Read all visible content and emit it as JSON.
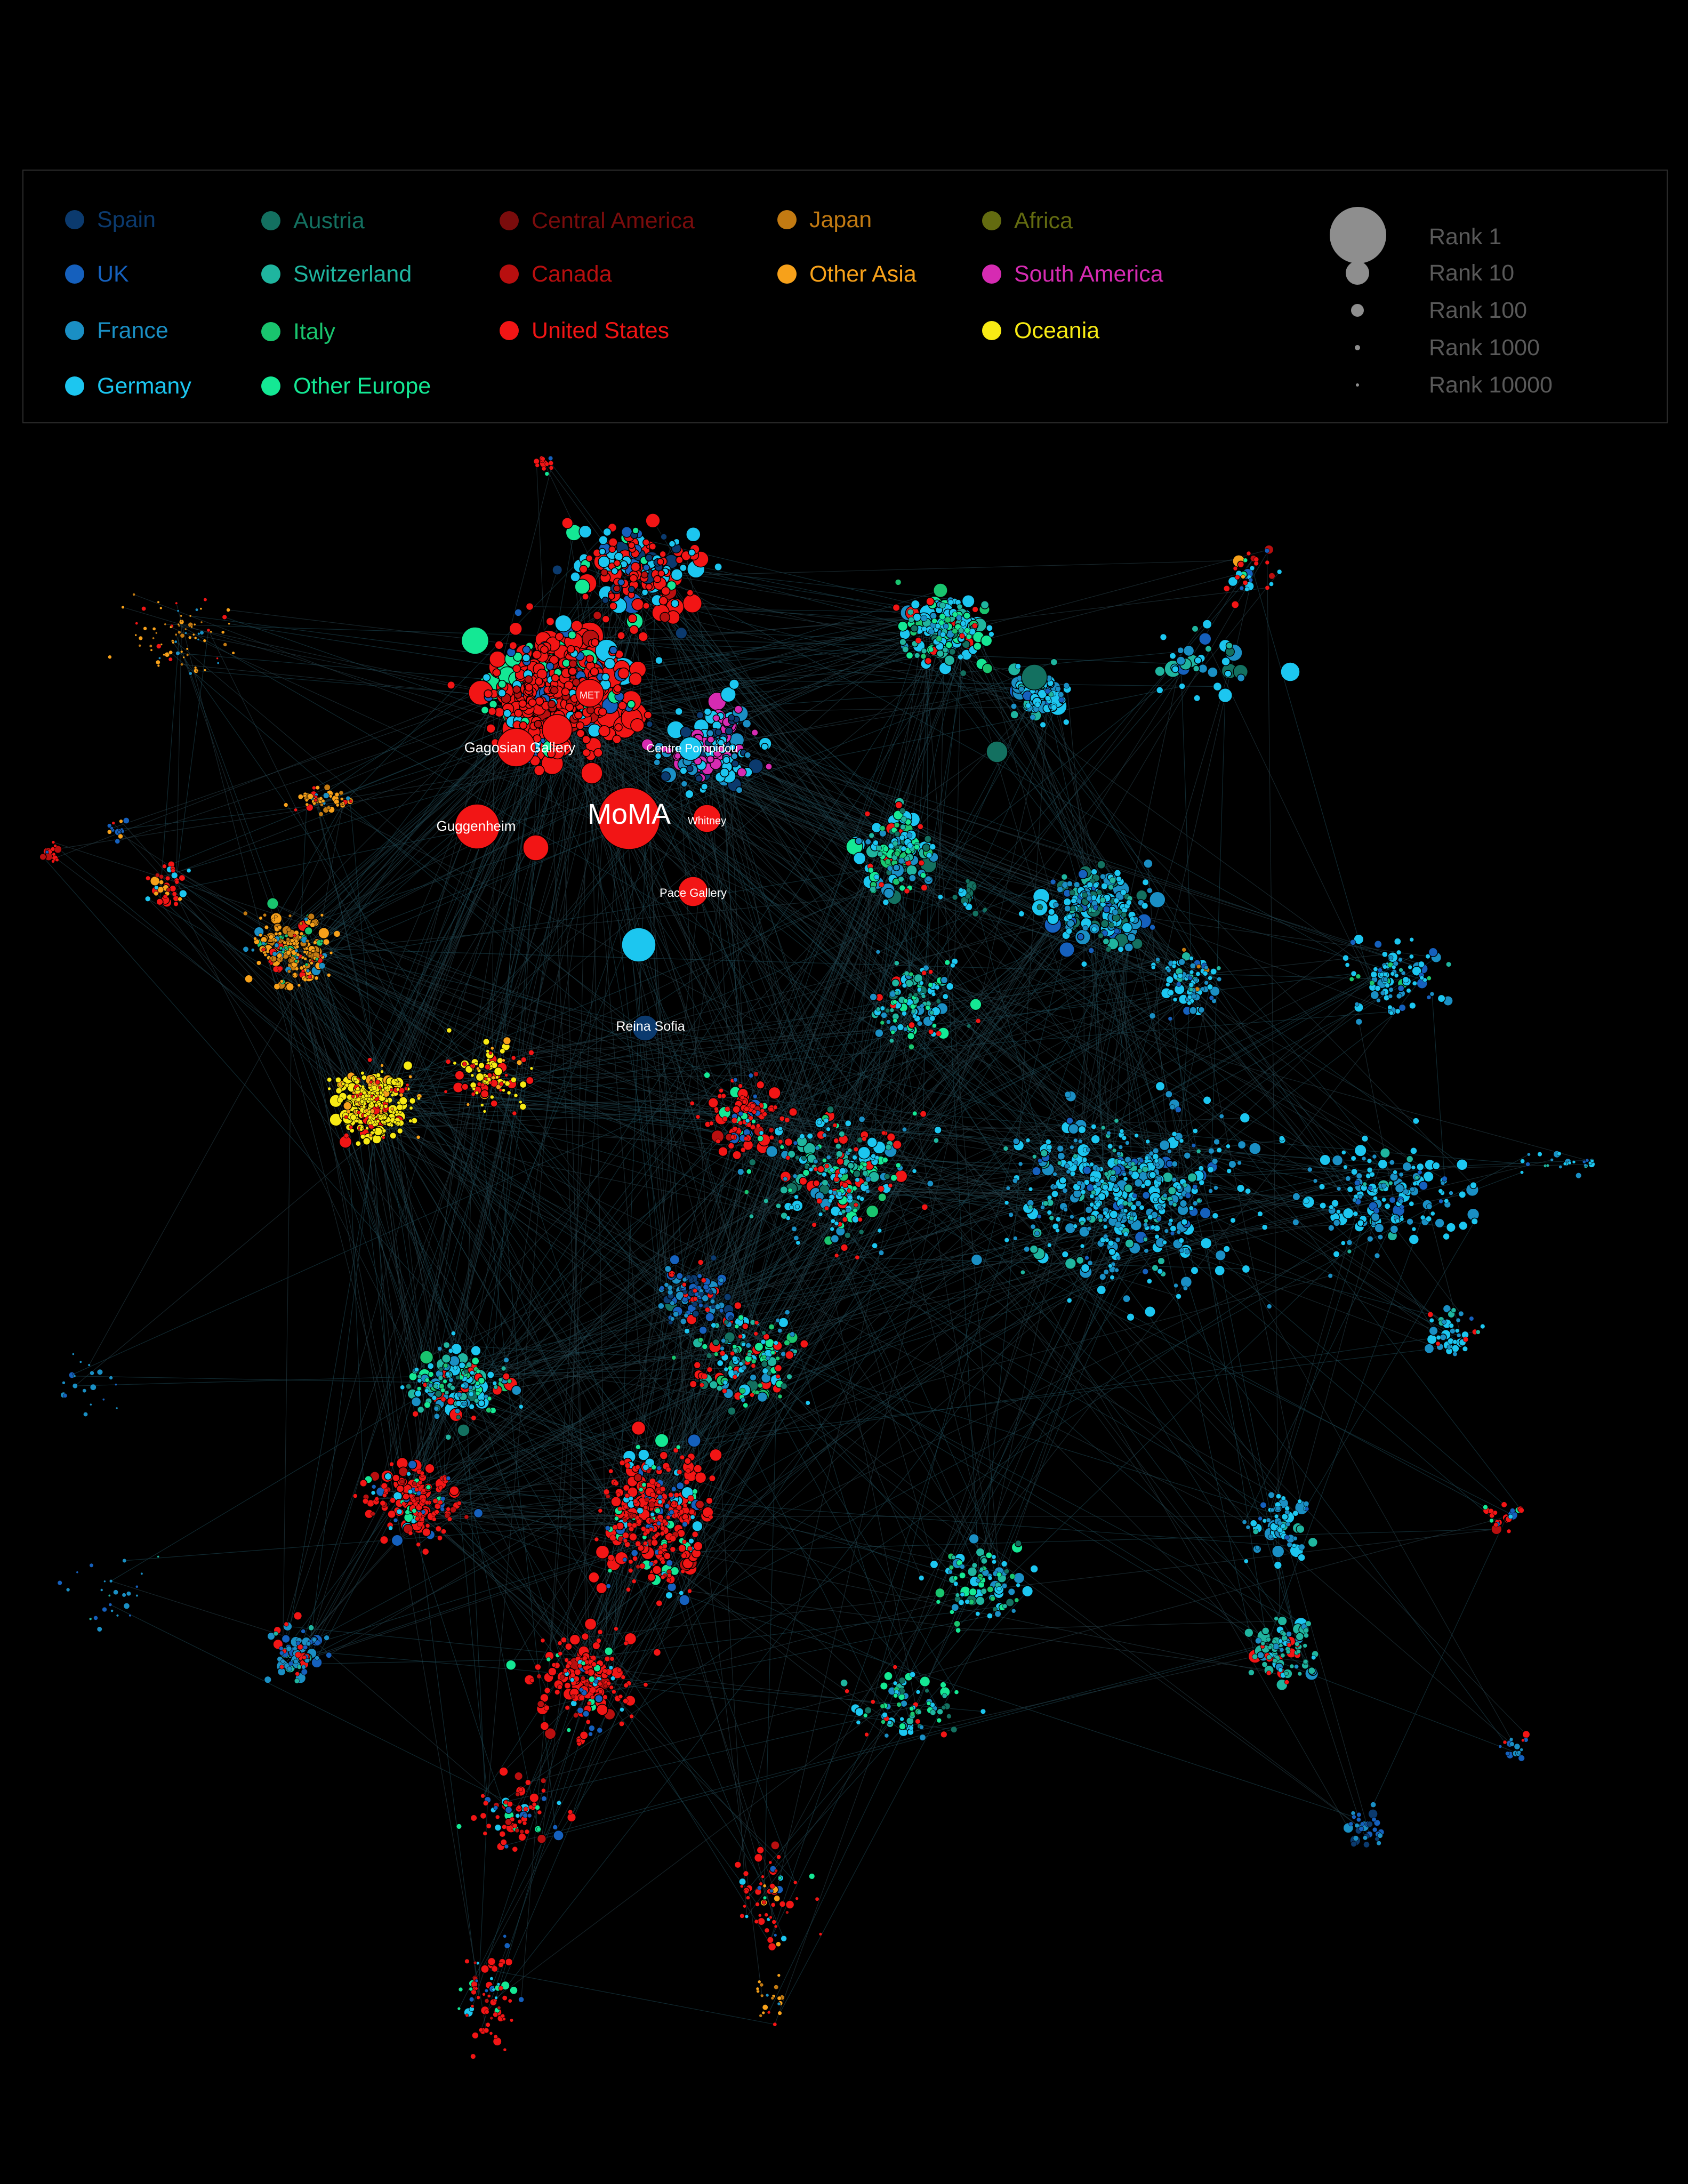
{
  "legend": {
    "regions": [
      {
        "label": "Spain",
        "color": "#0b3a6e"
      },
      {
        "label": "UK",
        "color": "#1560bd"
      },
      {
        "label": "France",
        "color": "#1a8fc4"
      },
      {
        "label": "Germany",
        "color": "#1cc6f0"
      },
      {
        "label": "Austria",
        "color": "#137060"
      },
      {
        "label": "Switzerland",
        "color": "#1fb59f"
      },
      {
        "label": "Italy",
        "color": "#19c46e"
      },
      {
        "label": "Other Europe",
        "color": "#14e894"
      },
      {
        "label": "Central America",
        "color": "#7a0c0c"
      },
      {
        "label": "Canada",
        "color": "#b80f0f"
      },
      {
        "label": "United States",
        "color": "#f21515"
      },
      {
        "label": "Japan",
        "color": "#c27a12"
      },
      {
        "label": "Other Asia",
        "color": "#f7a11a"
      },
      {
        "label": "Africa",
        "color": "#636b10"
      },
      {
        "label": "South America",
        "color": "#d62bb2"
      },
      {
        "label": "Oceania",
        "color": "#f7ea14"
      }
    ],
    "ranks": [
      {
        "label": "Rank 1"
      },
      {
        "label": "Rank 10"
      },
      {
        "label": "Rank 100"
      },
      {
        "label": "Rank 1000"
      },
      {
        "label": "Rank 10000"
      }
    ]
  },
  "network": {
    "labels": [
      {
        "text": "MoMA"
      },
      {
        "text": "MET"
      },
      {
        "text": "Gagosian Gallery"
      },
      {
        "text": "Centre Pompidou"
      },
      {
        "text": "Guggenheim"
      },
      {
        "text": "Whitney"
      },
      {
        "text": "Pace Gallery"
      },
      {
        "text": "Reina Sofia"
      }
    ]
  }
}
